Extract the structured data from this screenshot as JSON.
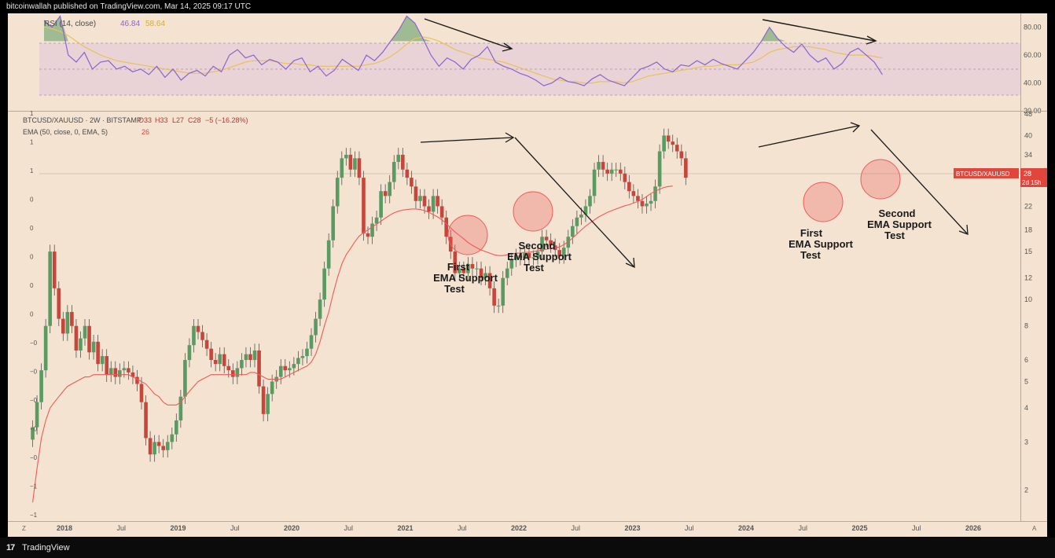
{
  "header": {
    "publisher_line": "bitcoinwallah published on TradingView.com, Mar 14, 2025 09:17 UTC"
  },
  "footer": {
    "brand": "TradingView",
    "logo_glyph": "17"
  },
  "colors": {
    "background": "#f3e3d0",
    "up": "#5a9a63",
    "down": "#c8453c",
    "ema": "#ef5b5b",
    "rsi": "#8a63d2",
    "rsi_ma": "#e8c25a",
    "rsi_band": "#e6cdd3",
    "price_tag": "#e0463c"
  },
  "chart_data": [
    {
      "type": "line",
      "name": "rsi-panel",
      "legend_title": "RSI (14, close)",
      "legend_values": [
        "46.84",
        "58.64"
      ],
      "ylim": [
        20,
        90
      ],
      "y_ticks": [
        "80.00",
        "60.00",
        "40.00",
        "20.00"
      ],
      "bands": [
        30,
        50,
        70
      ],
      "series": [
        {
          "role": "rsi",
          "values": [
            85,
            80,
            88,
            60,
            55,
            62,
            50,
            55,
            56,
            50,
            52,
            48,
            50,
            46,
            52,
            44,
            50,
            42,
            47,
            49,
            45,
            52,
            48,
            60,
            64,
            58,
            60,
            53,
            57,
            55,
            50,
            56,
            58,
            48,
            52,
            45,
            49,
            57,
            53,
            49,
            60,
            56,
            62,
            70,
            78,
            88,
            83,
            72,
            60,
            52,
            58,
            55,
            50,
            57,
            60,
            66,
            55,
            52,
            50,
            47,
            45,
            42,
            38,
            40,
            44,
            41,
            40,
            38,
            43,
            46,
            42,
            40,
            38,
            44,
            50,
            52,
            55,
            50,
            48,
            53,
            52,
            56,
            53,
            57,
            54,
            52,
            50,
            56,
            62,
            70,
            80,
            72,
            66,
            62,
            68,
            60,
            55,
            58,
            50,
            54,
            62,
            65,
            60,
            55,
            46
          ]
        },
        {
          "role": "rsi-ma",
          "values": [
            80,
            79,
            77,
            74,
            70,
            66,
            63,
            60,
            58,
            56,
            55,
            54,
            53,
            52,
            51,
            50,
            49,
            48,
            47,
            47,
            47,
            48,
            49,
            51,
            53,
            55,
            56,
            56,
            56,
            55,
            54,
            54,
            53,
            53,
            52,
            52,
            52,
            52,
            52,
            52,
            53,
            54,
            56,
            59,
            63,
            68,
            72,
            73,
            72,
            70,
            67,
            64,
            62,
            60,
            58,
            57,
            56,
            55,
            53,
            51,
            49,
            47,
            45,
            43,
            42,
            41,
            41,
            40,
            40,
            41,
            41,
            41,
            40,
            41,
            43,
            45,
            46,
            47,
            48,
            49,
            50,
            51,
            52,
            52,
            53,
            53,
            53,
            54,
            55,
            58,
            62,
            64,
            65,
            66,
            66,
            66,
            65,
            64,
            62,
            61,
            60,
            60,
            60,
            59,
            58
          ]
        }
      ]
    },
    {
      "type": "candlestick",
      "name": "price-panel",
      "symbol_line": "BTCUSD/XAUUSD · 2W · BITSTAMP",
      "ohlc_text": {
        "o": "O33",
        "h": "H33",
        "l": "L27",
        "c": "C28",
        "chg": "−5 (−16.28%)"
      },
      "ema_legend": "EMA (50, close, 0, EMA, 5)",
      "ema_value": "26",
      "y_scale": "log",
      "ylim": [
        1.6,
        48
      ],
      "y_ticks": [
        "48",
        "40",
        "34",
        "28",
        "22",
        "18",
        "15",
        "12",
        "10",
        "8",
        "6",
        "5",
        "4",
        "3",
        "2"
      ],
      "y_tick_values": [
        48,
        40,
        34,
        28,
        22,
        18,
        15,
        12,
        10,
        8,
        6,
        5,
        4,
        3,
        2
      ],
      "left_ticks": [
        "1",
        "1",
        "1",
        "0",
        "0",
        "0",
        "0",
        "0",
        "−0",
        "−0",
        "−0",
        "−0",
        "−0",
        "−1",
        "−1"
      ],
      "x_ticks": [
        "2018",
        "Jul",
        "2019",
        "Jul",
        "2020",
        "Jul",
        "2021",
        "Jul",
        "2022",
        "Jul",
        "2023",
        "Jul",
        "2024",
        "Jul",
        "2025",
        "Jul",
        "2026"
      ],
      "x_tick_years": [
        2018.0,
        2018.5,
        2019.0,
        2019.5,
        2020.0,
        2020.5,
        2021.0,
        2021.5,
        2022.0,
        2022.5,
        2023.0,
        2023.5,
        2024.0,
        2024.5,
        2025.0,
        2025.5,
        2026.0
      ],
      "x_corner_left": "Z",
      "x_corner_right": "A",
      "last_price_label": "BTCUSD/XAUUSD",
      "last_price": "28",
      "countdown": "2d 15h",
      "closes": [
        3.4,
        4.2,
        5.5,
        8,
        15,
        11,
        8.5,
        7.5,
        9,
        8,
        6.5,
        7.2,
        8,
        6.4,
        7,
        5.8,
        6.2,
        5.3,
        5.6,
        5.2,
        5.5,
        5.6,
        5.4,
        5.2,
        4.9,
        4.2,
        3.1,
        2.7,
        3.0,
        2.9,
        2.8,
        3.0,
        3.2,
        3.6,
        4.4,
        6,
        6.8,
        8,
        7.6,
        7.1,
        6.6,
        6,
        5.8,
        6.3,
        5.7,
        5.5,
        5.2,
        5.6,
        6,
        6.3,
        6.0,
        6.5,
        4.8,
        3.8,
        4.5,
        5.0,
        5.2,
        5.7,
        5.5,
        5.6,
        5.8,
        6.1,
        6.2,
        6.6,
        7.4,
        8.5,
        10,
        13,
        16.5,
        22,
        28,
        33,
        34,
        30,
        33,
        28,
        17.5,
        17,
        19,
        20,
        25,
        24,
        27,
        32,
        34,
        30,
        28,
        26,
        23,
        24,
        22,
        21,
        24,
        22,
        20,
        17,
        15,
        12.5,
        13,
        12.5,
        13.5,
        13,
        13,
        12,
        12.5,
        11,
        9.5,
        9.5,
        12,
        13,
        14,
        14.5,
        14.2,
        14.8,
        14.2,
        14.3,
        15,
        17,
        16.5,
        15.8,
        15.2,
        14.4,
        15.5,
        17,
        18.6,
        20,
        20.5,
        22,
        24,
        30,
        32,
        30,
        29,
        30,
        30,
        29,
        27,
        25,
        24,
        23,
        22,
        22.5,
        23,
        26,
        35,
        40,
        38,
        37,
        35,
        33,
        28
      ],
      "ema_values": [
        1.8,
        2.4,
        3.1,
        3.6,
        4.0,
        4.2,
        4.4,
        4.6,
        4.8,
        4.9,
        5.0,
        5.1,
        5.2,
        5.2,
        5.3,
        5.3,
        5.3,
        5.3,
        5.3,
        5.3,
        5.3,
        5.3,
        5.3,
        5.2,
        5.1,
        5.0,
        4.9,
        4.7,
        4.5,
        4.4,
        4.2,
        4.1,
        4.1,
        4.1,
        4.2,
        4.4,
        4.6,
        4.8,
        5.0,
        5.1,
        5.2,
        5.3,
        5.3,
        5.3,
        5.3,
        5.3,
        5.3,
        5.3,
        5.3,
        5.3,
        5.4,
        5.4,
        5.3,
        5.2,
        5.1,
        5.1,
        5.1,
        5.1,
        5.2,
        5.3,
        5.4,
        5.5,
        5.6,
        5.7,
        5.9,
        6.3,
        7,
        8,
        9,
        10.5,
        12,
        13.5,
        14.6,
        15.4,
        16.3,
        17.1,
        17.6,
        18.0,
        18.5,
        18.9,
        19.4,
        19.9,
        20.4,
        20.8,
        21.1,
        21.3,
        21.4,
        21.5,
        21.5,
        21.4,
        21.2,
        20.9,
        20.5,
        20.1,
        19.6,
        19.0,
        18.3,
        17.7,
        17.2,
        16.7,
        16.2,
        15.8,
        15.5,
        15.2,
        15.0,
        14.8,
        14.6,
        14.5,
        14.5,
        14.6,
        14.7,
        14.8,
        14.8,
        14.9,
        14.9,
        15.0,
        15.1,
        15.2,
        15.3,
        15.4,
        15.5,
        15.6,
        15.9,
        16.3,
        16.8,
        17.4,
        18.0,
        18.6,
        19.1,
        19.6,
        20.1,
        20.5,
        20.9,
        21.2,
        21.5,
        21.8,
        22.1,
        22.3,
        22.6,
        22.9,
        23.3,
        23.9,
        24.5,
        25.0,
        25.4,
        25.8,
        26.0,
        26.1
      ]
    }
  ],
  "annotations": {
    "first_test_1": [
      "First",
      "EMA Support",
      "Test"
    ],
    "second_test_1": [
      "Second",
      "EMA Support",
      "Test"
    ],
    "first_test_2": [
      "First",
      "EMA Support",
      "Test"
    ],
    "second_test_2": [
      "Second",
      "EMA Support",
      "Test"
    ]
  }
}
